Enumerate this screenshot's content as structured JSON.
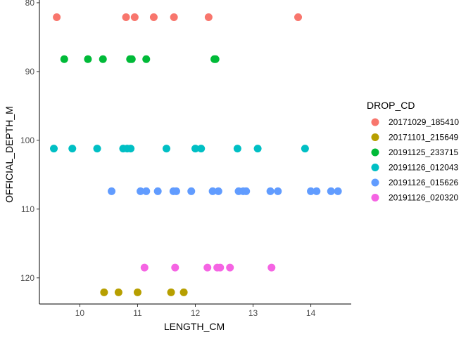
{
  "chart_data": {
    "type": "scatter",
    "title": "",
    "xlabel": "LENGTH_CM",
    "ylabel": "OFFICIAL_DEPTH_M",
    "xlim": [
      9.3,
      14.7
    ],
    "ylim": [
      79.6,
      123.8
    ],
    "y_reversed": true,
    "x_ticks": [
      10,
      11,
      12,
      13,
      14
    ],
    "y_ticks": [
      80,
      90,
      100,
      110,
      120
    ],
    "grid": false,
    "legend_position": "right",
    "legend_title": "DROP_CD",
    "series": [
      {
        "name": "20171029_185410",
        "color": "#F8766D",
        "depth": 82.1,
        "x": [
          9.6,
          10.8,
          10.95,
          11.28,
          11.63,
          12.23,
          13.78
        ]
      },
      {
        "name": "20171101_215649",
        "color": "#B79F00",
        "depth": 122.1,
        "x": [
          10.42,
          10.67,
          11.0,
          11.58,
          11.8
        ]
      },
      {
        "name": "20191125_233715",
        "color": "#00BA38",
        "depth": 88.2,
        "x": [
          9.73,
          10.14,
          10.4,
          10.87,
          10.9,
          11.15,
          12.33,
          12.35
        ]
      },
      {
        "name": "20191126_012043",
        "color": "#00BFC4",
        "depth": 101.2,
        "x": [
          9.55,
          9.87,
          10.3,
          10.75,
          10.82,
          10.88,
          11.5,
          12.0,
          12.1,
          12.73,
          13.08,
          13.9
        ]
      },
      {
        "name": "20191126_015626",
        "color": "#619CFF",
        "depth": 107.4,
        "x": [
          10.55,
          11.05,
          11.15,
          11.35,
          11.62,
          11.67,
          11.93,
          12.3,
          12.4,
          12.75,
          12.83,
          12.88,
          13.3,
          13.43,
          14.0,
          14.1,
          14.35,
          14.47
        ]
      },
      {
        "name": "20191126_020320",
        "color": "#F564E3",
        "depth": 118.5,
        "x": [
          11.12,
          11.65,
          12.21,
          12.38,
          12.43,
          12.6,
          13.32
        ]
      }
    ]
  }
}
